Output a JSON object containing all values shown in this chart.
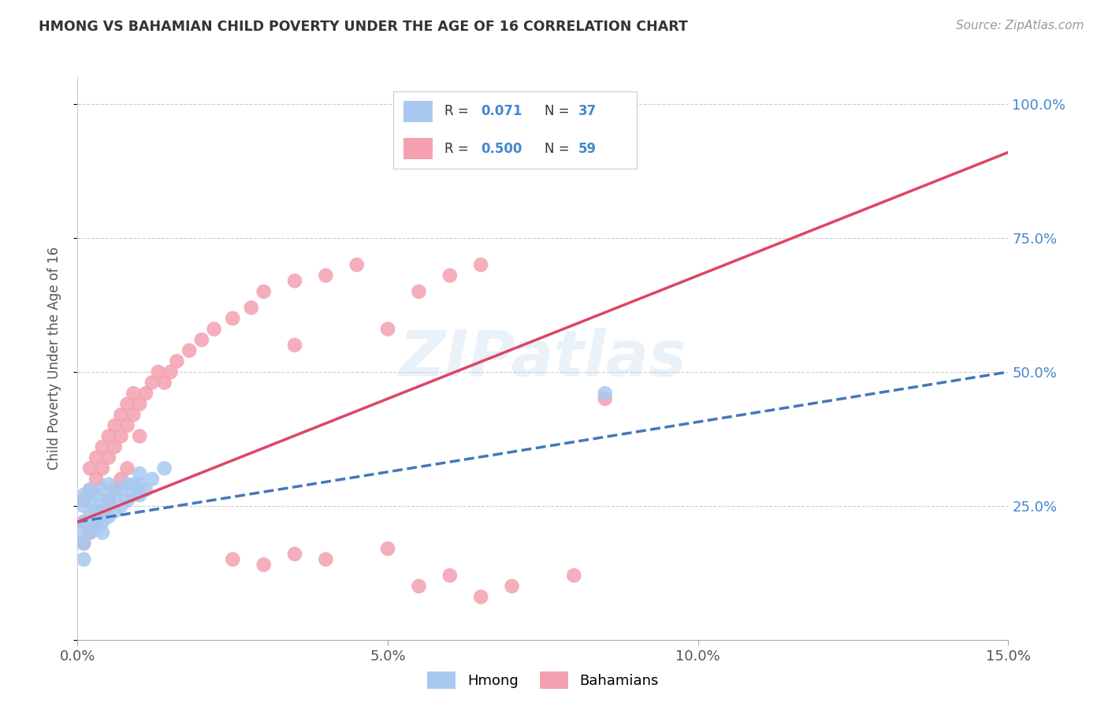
{
  "title": "HMONG VS BAHAMIAN CHILD POVERTY UNDER THE AGE OF 16 CORRELATION CHART",
  "source": "Source: ZipAtlas.com",
  "ylabel": "Child Poverty Under the Age of 16",
  "xlim": [
    0.0,
    0.15
  ],
  "ylim": [
    0.0,
    1.05
  ],
  "xticks": [
    0.0,
    0.05,
    0.1,
    0.15
  ],
  "xtick_labels": [
    "0.0%",
    "5.0%",
    "10.0%",
    "15.0%"
  ],
  "yticks": [
    0.0,
    0.25,
    0.5,
    0.75,
    1.0
  ],
  "ytick_labels": [
    "",
    "25.0%",
    "50.0%",
    "75.0%",
    "100.0%"
  ],
  "hmong_color": "#a8c8f0",
  "bahamian_color": "#f4a0b0",
  "hmong_line_color": "#4477bb",
  "bahamian_line_color": "#dd4466",
  "legend_label_hmong": "Hmong",
  "legend_label_bahamian": "Bahamians",
  "watermark": "ZIPatlas",
  "hmong_x": [
    0.0005,
    0.001,
    0.001,
    0.001,
    0.002,
    0.002,
    0.002,
    0.003,
    0.003,
    0.003,
    0.004,
    0.004,
    0.004,
    0.005,
    0.005,
    0.005,
    0.006,
    0.006,
    0.007,
    0.007,
    0.008,
    0.008,
    0.009,
    0.009,
    0.01,
    0.01,
    0.01,
    0.011,
    0.012,
    0.014,
    0.001,
    0.001,
    0.002,
    0.003,
    0.003,
    0.004,
    0.085
  ],
  "hmong_y": [
    0.2,
    0.22,
    0.25,
    0.27,
    0.23,
    0.26,
    0.28,
    0.21,
    0.24,
    0.27,
    0.22,
    0.25,
    0.28,
    0.23,
    0.26,
    0.29,
    0.24,
    0.27,
    0.25,
    0.28,
    0.26,
    0.29,
    0.27,
    0.29,
    0.27,
    0.29,
    0.31,
    0.28,
    0.3,
    0.32,
    0.15,
    0.18,
    0.2,
    0.22,
    0.24,
    0.2,
    0.46
  ],
  "bahamian_x": [
    0.001,
    0.001,
    0.002,
    0.002,
    0.003,
    0.003,
    0.004,
    0.004,
    0.005,
    0.005,
    0.006,
    0.006,
    0.007,
    0.007,
    0.008,
    0.008,
    0.009,
    0.009,
    0.01,
    0.01,
    0.011,
    0.012,
    0.013,
    0.014,
    0.015,
    0.016,
    0.018,
    0.02,
    0.022,
    0.025,
    0.028,
    0.03,
    0.035,
    0.035,
    0.04,
    0.045,
    0.05,
    0.055,
    0.06,
    0.065,
    0.085,
    0.001,
    0.002,
    0.003,
    0.004,
    0.005,
    0.006,
    0.007,
    0.008,
    0.025,
    0.03,
    0.035,
    0.04,
    0.05,
    0.055,
    0.06,
    0.065,
    0.07,
    0.08
  ],
  "bahamian_y": [
    0.22,
    0.26,
    0.28,
    0.32,
    0.3,
    0.34,
    0.32,
    0.36,
    0.34,
    0.38,
    0.36,
    0.4,
    0.38,
    0.42,
    0.4,
    0.44,
    0.42,
    0.46,
    0.38,
    0.44,
    0.46,
    0.48,
    0.5,
    0.48,
    0.5,
    0.52,
    0.54,
    0.56,
    0.58,
    0.6,
    0.62,
    0.65,
    0.67,
    0.55,
    0.68,
    0.7,
    0.58,
    0.65,
    0.68,
    0.7,
    0.45,
    0.18,
    0.2,
    0.22,
    0.24,
    0.26,
    0.28,
    0.3,
    0.32,
    0.15,
    0.14,
    0.16,
    0.15,
    0.17,
    0.1,
    0.12,
    0.08,
    0.1,
    0.12
  ],
  "background_color": "#ffffff",
  "grid_color": "#cccccc",
  "hmong_line_x0": 0.0,
  "hmong_line_x1": 0.15,
  "hmong_line_y0": 0.22,
  "hmong_line_y1": 0.5,
  "bahamian_line_x0": 0.0,
  "bahamian_line_x1": 0.15,
  "bahamian_line_y0": 0.22,
  "bahamian_line_y1": 0.91
}
